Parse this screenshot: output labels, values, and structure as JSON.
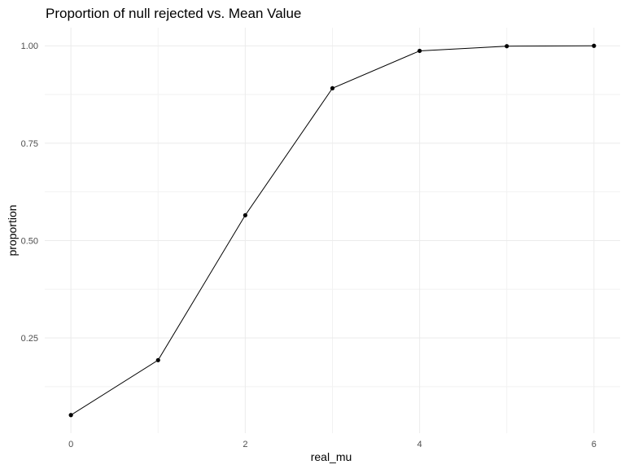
{
  "chart_data": {
    "type": "line",
    "title": "Proportion of null rejected vs. Mean Value",
    "xlabel": "real_mu",
    "ylabel": "proportion",
    "x": [
      0,
      1,
      2,
      3,
      4,
      5,
      6
    ],
    "y": [
      0.052,
      0.193,
      0.565,
      0.891,
      0.987,
      0.999,
      1.0
    ],
    "xlim": [
      -0.3,
      6.3
    ],
    "ylim": [
      0.0055,
      1.0465
    ],
    "x_ticks": [
      0,
      2,
      4,
      6
    ],
    "x_tick_labels": [
      "0",
      "2",
      "4",
      "6"
    ],
    "y_ticks": [
      0.25,
      0.5,
      0.75,
      1.0
    ],
    "y_tick_labels": [
      "0.25",
      "0.50",
      "0.75",
      "1.00"
    ],
    "grid": true,
    "legend": "none",
    "colors": {
      "line": "#000000",
      "point": "#000000",
      "grid_major": "#ebebeb",
      "grid_minor": "#f2f2f2"
    }
  }
}
